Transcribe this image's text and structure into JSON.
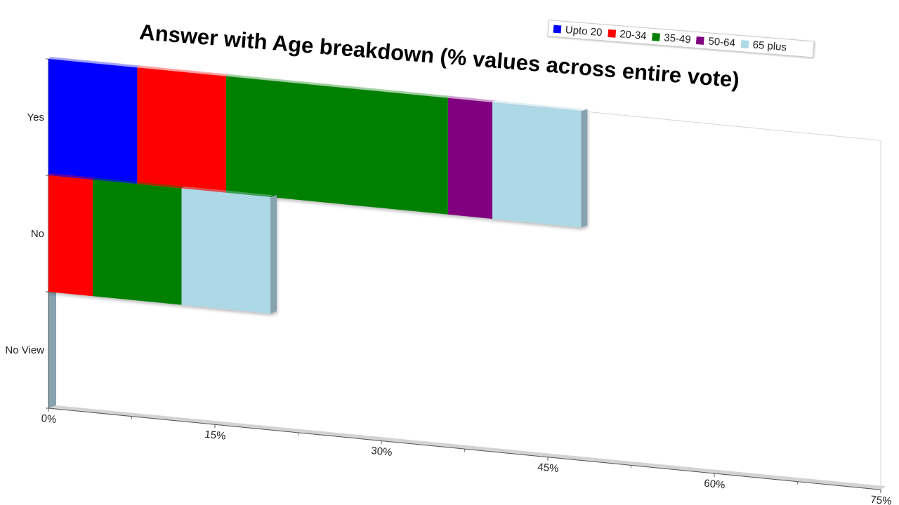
{
  "chart_data": {
    "type": "bar",
    "orientation": "horizontal",
    "stacked": true,
    "title": "Answer with Age breakdown (% values across entire vote)",
    "categories": [
      "Yes",
      "No",
      "No View"
    ],
    "series": [
      {
        "name": "Upto 20",
        "color": "#0000ff",
        "values": [
          8,
          0,
          0
        ]
      },
      {
        "name": "20-34",
        "color": "#ff0000",
        "values": [
          8,
          4,
          0
        ]
      },
      {
        "name": "35-49",
        "color": "#008000",
        "values": [
          20,
          8,
          0
        ]
      },
      {
        "name": "50-64",
        "color": "#800080",
        "values": [
          4,
          0,
          0
        ]
      },
      {
        "name": "65 plus",
        "color": "#add8e6",
        "values": [
          8,
          8,
          0
        ]
      }
    ],
    "x_ticks": [
      "0%",
      "15%",
      "30%",
      "45%",
      "60%",
      "75%"
    ],
    "xlim": [
      0,
      75
    ],
    "legend_position": "top-right",
    "grid": false
  }
}
